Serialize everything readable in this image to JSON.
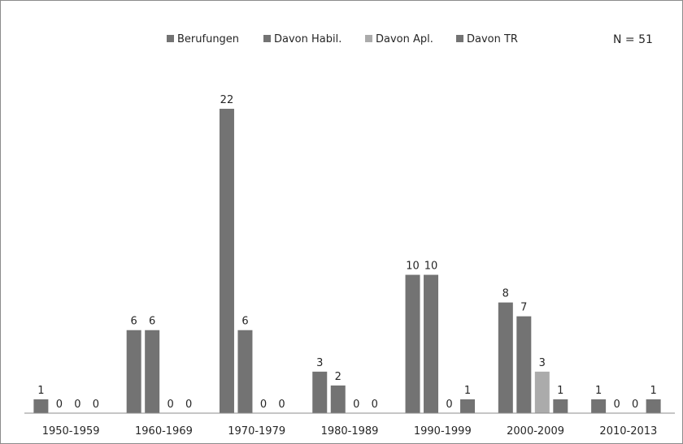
{
  "chart_data": {
    "type": "bar",
    "title": "",
    "xlabel": "",
    "ylabel": "",
    "annotation": "N = 51",
    "ylim": [
      0,
      22
    ],
    "legend_position": "top",
    "grid": false,
    "categories": [
      "1950-1959",
      "1960-1969",
      "1970-1979",
      "1980-1989",
      "1990-1999",
      "2000-2009",
      "2010-2013"
    ],
    "series": [
      {
        "name": "Berufungen",
        "color": "#737373",
        "values": [
          1,
          6,
          22,
          3,
          10,
          8,
          1
        ]
      },
      {
        "name": "Davon Habil.",
        "color": "#737373",
        "values": [
          0,
          6,
          6,
          2,
          10,
          7,
          0
        ]
      },
      {
        "name": "Davon Apl.",
        "color": "#ababab",
        "values": [
          0,
          0,
          0,
          0,
          0,
          3,
          0
        ]
      },
      {
        "name": "Davon TR",
        "color": "#737373",
        "values": [
          0,
          0,
          0,
          0,
          1,
          1,
          1
        ]
      }
    ]
  }
}
